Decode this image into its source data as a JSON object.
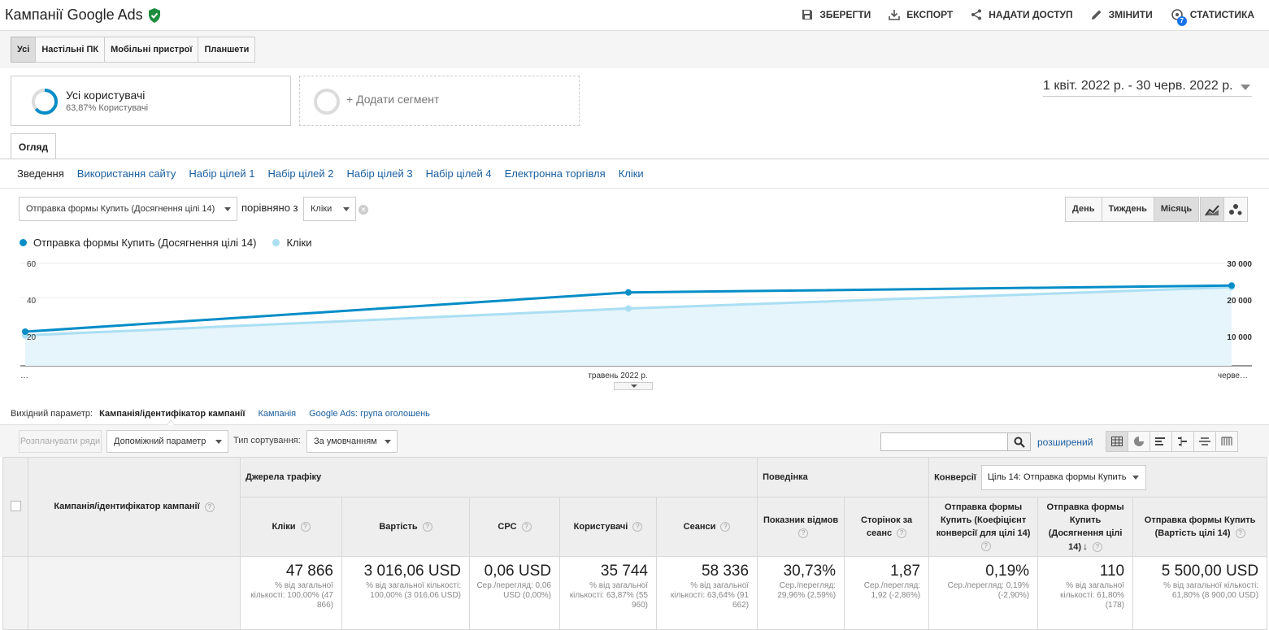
{
  "header": {
    "title": "Кампанії Google Ads",
    "save_label": "ЗБЕРЕГТИ",
    "export_label": "ЕКСПОРТ",
    "share_label": "НАДАТИ ДОСТУП",
    "edit_label": "ЗМІНИТИ",
    "insights_label": "СТАТИСТИКА",
    "insights_count": "7"
  },
  "device_tabs": [
    "Усі",
    "Настільні ПК",
    "Мобільні пристрої",
    "Планшети"
  ],
  "segments": {
    "active_name": "Усі користувачі",
    "active_sub": "63,87% Користувачі",
    "active_fraction": 0.6387,
    "add_label": "+ Додати сегмент"
  },
  "date_range": "1 квіт. 2022 р. - 30 черв. 2022 р.",
  "overview_tab": "Огляд",
  "subnav": [
    "Зведення",
    "Використання сайту",
    "Набір цілей 1",
    "Набір цілей 2",
    "Набір цілей 3",
    "Набір цілей 4",
    "Електронна торгівля",
    "Кліки"
  ],
  "chart_controls": {
    "metric1": "Отправка формы Купить (Досягнення цілі 14)",
    "compare_label": "порівняно з",
    "metric2": "Кліки",
    "periods": [
      "День",
      "Тиждень",
      "Місяць"
    ]
  },
  "chart_data": {
    "type": "line",
    "categories": [
      "…",
      "травень 2022 р.",
      "черве…"
    ],
    "series": [
      {
        "name": "Отправка формы Купить (Досягнення цілі 14)",
        "axis": "left",
        "color": "#058dc7",
        "values": [
          20,
          43,
          47
        ]
      },
      {
        "name": "Кліки",
        "axis": "right",
        "color": "#aadff3",
        "values": [
          8900,
          16800,
          23000
        ]
      }
    ],
    "left_axis": {
      "ticks": [
        "20",
        "40",
        "60"
      ],
      "min": 0,
      "max": 60
    },
    "right_axis": {
      "ticks": [
        "10 000",
        "20 000",
        "30 000"
      ],
      "min": 0,
      "max": 30000
    }
  },
  "primary_dimension": {
    "label": "Вихідний параметр:",
    "current": "Кампанія/ідентифікатор кампанії",
    "others": [
      "Кампанія",
      "Google Ads: група оголошень"
    ]
  },
  "table_controls": {
    "plot_rows": "Розпланувати ряди",
    "secondary_dim": "Допоміжний параметр",
    "sort_label": "Тип сортування:",
    "sort_value": "За умовчанням",
    "advanced": "розширений"
  },
  "table": {
    "dim_header": "Кампанія/ідентифікатор кампанії",
    "groups": {
      "traffic": "Джерела трафіку",
      "behavior": "Поведінка",
      "conversions": "Конверсії",
      "goal_select": "Ціль 14: Отправка формы Купить"
    },
    "columns": [
      "Кліки",
      "Вартість",
      "CPC",
      "Користувачі",
      "Сеанси",
      "Показник відмов",
      "Сторінок за сеанс",
      "Отправка формы Купить (Коефіцієнт конверсії для цілі 14)",
      "Отправка формы Купить (Досягнення цілі 14)",
      "Отправка формы Купить (Вартість цілі 14)"
    ],
    "totals": [
      {
        "value": "47 866",
        "sub": "% від загальної кількості: 100,00% (47 866)"
      },
      {
        "value": "3 016,06 USD",
        "sub": "% від загальної кількості: 100,00% (3 016,06 USD)"
      },
      {
        "value": "0,06 USD",
        "sub": "Сер./перегляд: 0,06 USD (0,00%)"
      },
      {
        "value": "35 744",
        "sub": "% від загальної кількості: 63,87% (55 960)"
      },
      {
        "value": "58 336",
        "sub": "% від загальної кількості: 63,64% (91 662)"
      },
      {
        "value": "30,73%",
        "sub": "Сер./перегляд: 29,96% (2,59%)"
      },
      {
        "value": "1,87",
        "sub": "Сер./перегляд: 1,92 (-2,86%)"
      },
      {
        "value": "0,19%",
        "sub": "Сер./перегляд: 0,19% (-2,90%)"
      },
      {
        "value": "110",
        "sub": "% від загальної кількості: 61,80% (178)"
      },
      {
        "value": "5 500,00 USD",
        "sub": "% від загальної кількості: 61,80% (8 900,00 USD)"
      }
    ]
  }
}
